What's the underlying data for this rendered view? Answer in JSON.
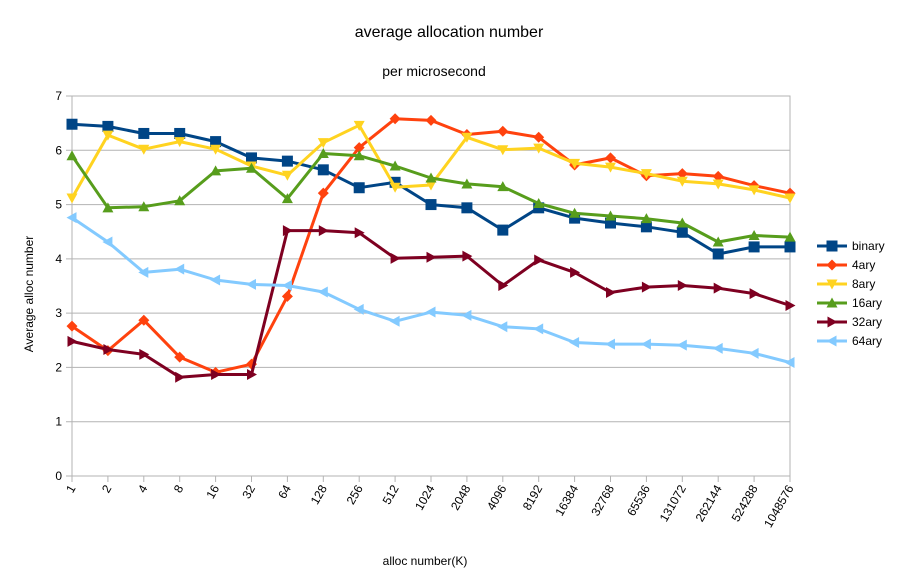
{
  "chart_data": {
    "type": "line",
    "title": "average allocation number",
    "subtitle": "per microsecond",
    "xlabel": "alloc number(K)",
    "ylabel": "Average alloc number",
    "ylim": [
      0,
      7
    ],
    "yticks": [
      "0",
      "1",
      "2",
      "3",
      "4",
      "5",
      "6",
      "7"
    ],
    "grid": true,
    "legend_position": "right",
    "categories": [
      "1",
      "2",
      "4",
      "8",
      "16",
      "32",
      "64",
      "128",
      "256",
      "512",
      "1024",
      "2048",
      "4096",
      "8192",
      "16384",
      "32768",
      "65536",
      "131072",
      "262144",
      "524288",
      "1048576"
    ],
    "series": [
      {
        "name": "binary",
        "color": "#004586",
        "marker": "square",
        "values": [
          6.48,
          6.44,
          6.31,
          6.31,
          6.16,
          5.86,
          5.8,
          5.64,
          5.31,
          5.41,
          5.0,
          4.94,
          4.53,
          4.94,
          4.75,
          4.66,
          4.59,
          4.49,
          4.09,
          4.22,
          4.22
        ]
      },
      {
        "name": "4ary",
        "color": "#ff420e",
        "marker": "diamond",
        "values": [
          2.76,
          2.31,
          2.87,
          2.19,
          1.91,
          2.06,
          3.31,
          5.21,
          6.05,
          6.58,
          6.55,
          6.29,
          6.35,
          6.24,
          5.73,
          5.86,
          5.53,
          5.57,
          5.52,
          5.35,
          5.21
        ]
      },
      {
        "name": "8ary",
        "color": "#ffd320",
        "marker": "triangle-down",
        "values": [
          5.12,
          6.28,
          6.02,
          6.16,
          6.02,
          5.71,
          5.54,
          6.14,
          6.46,
          5.32,
          5.36,
          6.24,
          6.01,
          6.04,
          5.76,
          5.69,
          5.57,
          5.43,
          5.38,
          5.27,
          5.12
        ]
      },
      {
        "name": "16ary",
        "color": "#579d1c",
        "marker": "triangle-up",
        "values": [
          5.9,
          4.94,
          4.96,
          5.07,
          5.62,
          5.67,
          5.11,
          5.94,
          5.9,
          5.71,
          5.49,
          5.38,
          5.33,
          5.02,
          4.84,
          4.79,
          4.74,
          4.66,
          4.31,
          4.43,
          4.4
        ]
      },
      {
        "name": "32ary",
        "color": "#7e0021",
        "marker": "triangle-right",
        "values": [
          2.48,
          2.33,
          2.24,
          1.82,
          1.87,
          1.87,
          4.52,
          4.52,
          4.48,
          4.01,
          4.03,
          4.05,
          3.51,
          3.98,
          3.75,
          3.38,
          3.48,
          3.51,
          3.46,
          3.36,
          3.14
        ]
      },
      {
        "name": "64ary",
        "color": "#83caff",
        "marker": "triangle-left",
        "values": [
          4.76,
          4.31,
          3.75,
          3.81,
          3.61,
          3.53,
          3.51,
          3.39,
          3.07,
          2.85,
          3.02,
          2.96,
          2.75,
          2.71,
          2.46,
          2.43,
          2.43,
          2.41,
          2.35,
          2.26,
          2.09
        ]
      }
    ]
  }
}
